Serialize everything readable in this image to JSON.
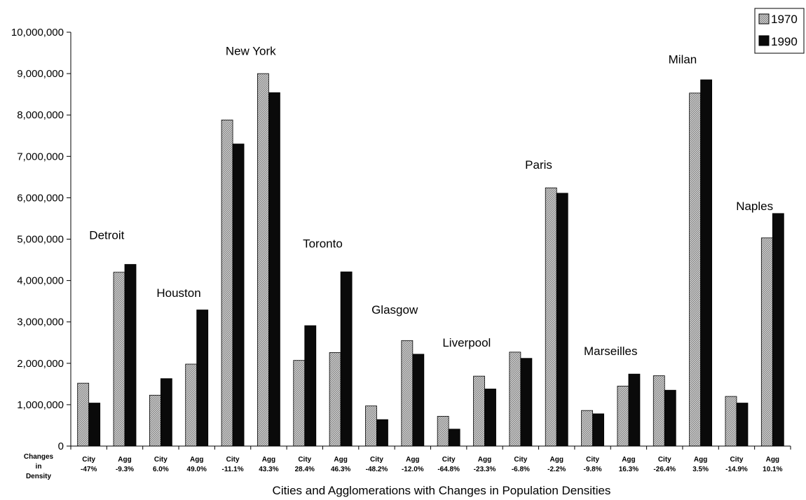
{
  "chart_data": {
    "type": "bar",
    "title": "",
    "xlabel": "Cities and Agglomerations with Changes in Population Densities",
    "ylabel": "",
    "ylim": [
      0,
      10000000
    ],
    "yticks": [
      "0",
      "1,000,000",
      "2,000,000",
      "3,000,000",
      "4,000,000",
      "5,000,000",
      "6,000,000",
      "7,000,000",
      "8,000,000",
      "9,000,000",
      "10,000,000"
    ],
    "row_label": [
      "Changes",
      "in",
      "Density"
    ],
    "categories": [
      {
        "type": "City",
        "change": "-47%"
      },
      {
        "type": "Agg",
        "change": "-9.3%"
      },
      {
        "type": "City",
        "change": "6.0%"
      },
      {
        "type": "Agg",
        "change": "49.0%"
      },
      {
        "type": "City",
        "change": "-11.1%"
      },
      {
        "type": "Agg",
        "change": "43.3%"
      },
      {
        "type": "City",
        "change": "28.4%"
      },
      {
        "type": "Agg",
        "change": "46.3%"
      },
      {
        "type": "City",
        "change": "-48.2%"
      },
      {
        "type": "Agg",
        "change": "-12.0%"
      },
      {
        "type": "City",
        "change": "-64.8%"
      },
      {
        "type": "Agg",
        "change": "-23.3%"
      },
      {
        "type": "City",
        "change": "-6.8%"
      },
      {
        "type": "Agg",
        "change": "-2.2%"
      },
      {
        "type": "City",
        "change": "-9.8%"
      },
      {
        "type": "Agg",
        "change": "16.3%"
      },
      {
        "type": "City",
        "change": "-26.4%"
      },
      {
        "type": "Agg",
        "change": "3.5%"
      },
      {
        "type": "City",
        "change": "-14.9%"
      },
      {
        "type": "Agg",
        "change": "10.1%"
      }
    ],
    "series": [
      {
        "name": "1970",
        "color": "#a8a8a8",
        "values": [
          1520000,
          4200000,
          1230000,
          1980000,
          7880000,
          9000000,
          2070000,
          2260000,
          970000,
          2550000,
          720000,
          1690000,
          2270000,
          6240000,
          860000,
          1450000,
          1700000,
          8530000,
          1200000,
          5030000
        ]
      },
      {
        "name": "1990",
        "color": "#0a0a0a",
        "values": [
          1040000,
          4390000,
          1630000,
          3290000,
          7300000,
          8540000,
          2910000,
          4210000,
          640000,
          2220000,
          410000,
          1380000,
          2120000,
          6110000,
          780000,
          1740000,
          1350000,
          8850000,
          1040000,
          5620000
        ]
      }
    ],
    "city_labels": [
      {
        "name": "Detroit",
        "group": 0,
        "value": 5000000
      },
      {
        "name": "Houston",
        "group": 1,
        "value": 3600000
      },
      {
        "name": "New York",
        "group": 2,
        "value": 9450000
      },
      {
        "name": "Toronto",
        "group": 3,
        "value": 4800000
      },
      {
        "name": "Glasgow",
        "group": 4,
        "value": 3200000
      },
      {
        "name": "Liverpool",
        "group": 5,
        "value": 2400000
      },
      {
        "name": "Paris",
        "group": 6,
        "value": 6700000
      },
      {
        "name": "Marseilles",
        "group": 7,
        "value": 2200000
      },
      {
        "name": "Milan",
        "group": 8,
        "value": 9250000
      },
      {
        "name": "Naples",
        "group": 9,
        "value": 5700000
      }
    ],
    "grid": false,
    "legend": "top-right"
  }
}
